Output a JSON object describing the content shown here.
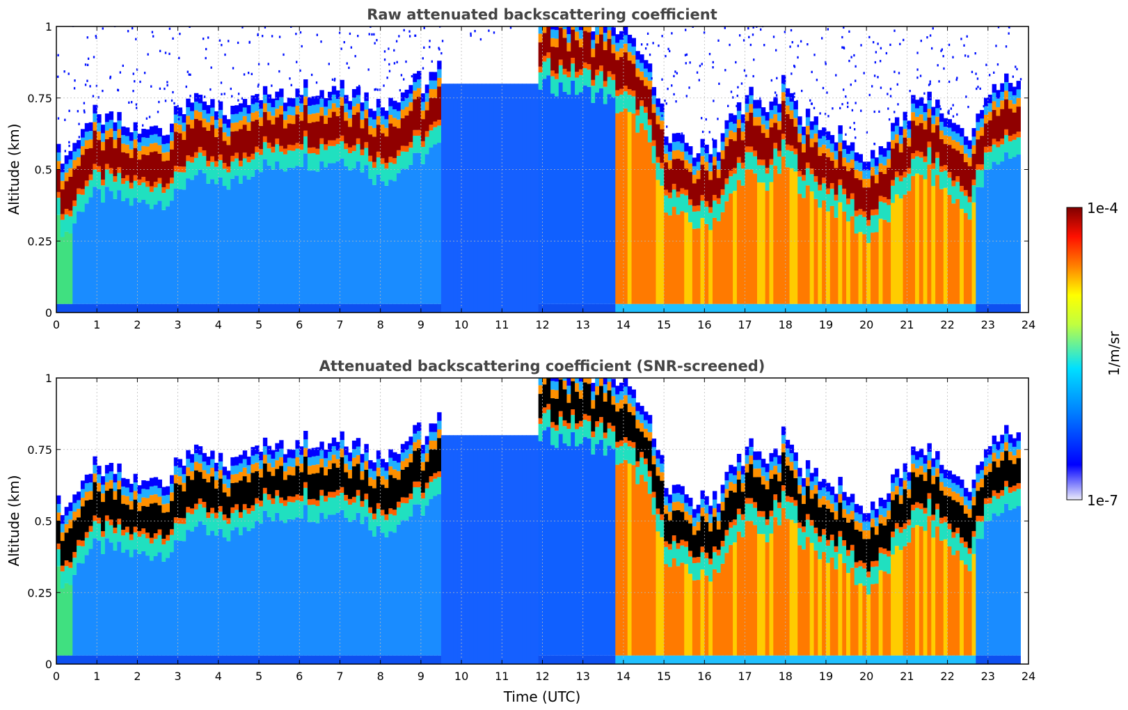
{
  "chart_data": [
    {
      "type": "heatmap",
      "title": "Raw attenuated backscattering coefficient",
      "xlabel": "",
      "ylabel": "Altitude (km)",
      "xlim": [
        0,
        24
      ],
      "ylim": [
        0,
        1
      ],
      "x_ticks": [
        "0",
        "1",
        "2",
        "3",
        "4",
        "5",
        "6",
        "7",
        "8",
        "9",
        "10",
        "11",
        "12",
        "13",
        "14",
        "15",
        "16",
        "17",
        "18",
        "19",
        "20",
        "21",
        "22",
        "23",
        "24"
      ],
      "y_ticks": [
        "0",
        "0.25",
        "0.5",
        "0.75",
        "1"
      ],
      "grid": true,
      "cloud_base_km": [
        {
          "t": 0.0,
          "z": 0.38
        },
        {
          "t": 0.3,
          "z": 0.33
        },
        {
          "t": 0.7,
          "z": 0.45
        },
        {
          "t": 1.0,
          "z": 0.47
        },
        {
          "t": 1.5,
          "z": 0.46
        },
        {
          "t": 2.0,
          "z": 0.44
        },
        {
          "t": 2.5,
          "z": 0.45
        },
        {
          "t": 3.0,
          "z": 0.46
        },
        {
          "t": 3.3,
          "z": 0.55
        },
        {
          "t": 3.6,
          "z": 0.52
        },
        {
          "t": 4.0,
          "z": 0.5
        },
        {
          "t": 4.5,
          "z": 0.52
        },
        {
          "t": 5.0,
          "z": 0.58
        },
        {
          "t": 5.5,
          "z": 0.56
        },
        {
          "t": 6.0,
          "z": 0.6
        },
        {
          "t": 6.5,
          "z": 0.58
        },
        {
          "t": 7.0,
          "z": 0.6
        },
        {
          "t": 7.5,
          "z": 0.58
        },
        {
          "t": 8.0,
          "z": 0.52
        },
        {
          "t": 8.5,
          "z": 0.56
        },
        {
          "t": 9.0,
          "z": 0.6
        },
        {
          "t": 9.5,
          "z": 0.64
        },
        {
          "t": 12.0,
          "z": 0.86
        },
        {
          "t": 13.5,
          "z": 0.82
        },
        {
          "t": 14.5,
          "z": 0.7
        },
        {
          "t": 15.0,
          "z": 0.45
        },
        {
          "t": 15.5,
          "z": 0.38
        },
        {
          "t": 16.0,
          "z": 0.36
        },
        {
          "t": 16.5,
          "z": 0.42
        },
        {
          "t": 17.0,
          "z": 0.55
        },
        {
          "t": 17.5,
          "z": 0.5
        },
        {
          "t": 18.0,
          "z": 0.58
        },
        {
          "t": 18.5,
          "z": 0.48
        },
        {
          "t": 19.0,
          "z": 0.44
        },
        {
          "t": 19.5,
          "z": 0.4
        },
        {
          "t": 20.0,
          "z": 0.32
        },
        {
          "t": 20.5,
          "z": 0.38
        },
        {
          "t": 21.0,
          "z": 0.5
        },
        {
          "t": 21.5,
          "z": 0.55
        },
        {
          "t": 22.0,
          "z": 0.48
        },
        {
          "t": 22.5,
          "z": 0.4
        },
        {
          "t": 23.0,
          "z": 0.55
        },
        {
          "t": 23.5,
          "z": 0.62
        },
        {
          "t": 23.8,
          "z": 0.6
        }
      ]
    },
    {
      "type": "heatmap",
      "title": "Attenuated backscattering coefficient (SNR-screened)",
      "xlabel": "Time (UTC)",
      "ylabel": "Altitude (km)",
      "xlim": [
        0,
        24
      ],
      "ylim": [
        0,
        1
      ],
      "x_ticks": [
        "0",
        "1",
        "2",
        "3",
        "4",
        "5",
        "6",
        "7",
        "8",
        "9",
        "10",
        "11",
        "12",
        "13",
        "14",
        "15",
        "16",
        "17",
        "18",
        "19",
        "20",
        "21",
        "22",
        "23",
        "24"
      ],
      "y_ticks": [
        "0",
        "0.25",
        "0.5",
        "0.75",
        "1"
      ],
      "grid": true
    }
  ],
  "colorbar": {
    "label": "1/m/sr",
    "max_label": "1e-4",
    "min_label": "1e-7",
    "colormap": [
      "#ebebfa",
      "#0000ff",
      "#00a0ff",
      "#00ffff",
      "#ffff00",
      "#ff8000",
      "#ff0000",
      "#800000"
    ]
  }
}
